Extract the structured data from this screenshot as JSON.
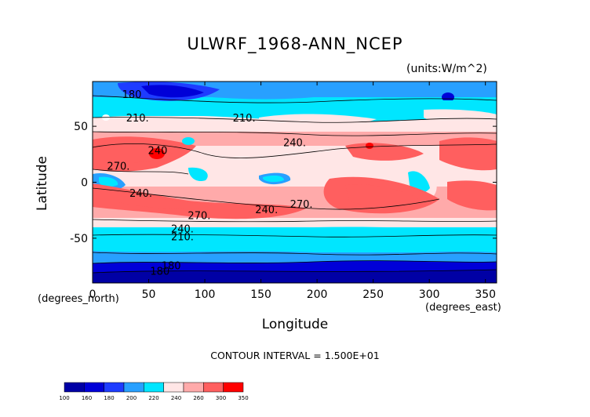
{
  "chart_data": {
    "type": "heatmap",
    "title": "ULWRF_1968-ANN_NCEP",
    "units": "(units:W/m^2)",
    "xlabel": "Longitude",
    "ylabel": "Latitude",
    "x_units": "(degrees_east)",
    "y_units": "(degrees_north)",
    "xlim": [
      0,
      360
    ],
    "ylim": [
      -90,
      90
    ],
    "x_ticks": [
      0,
      50,
      100,
      150,
      200,
      250,
      300,
      350
    ],
    "y_ticks": [
      -50,
      0,
      50
    ],
    "contour_interval": "CONTOUR INTERVAL = 1.500E+01",
    "colorbar": {
      "levels": [
        "100",
        "160",
        "180",
        "200",
        "220",
        "240",
        "260",
        "300",
        "350"
      ],
      "colors": [
        "#0000a5",
        "#0000d8",
        "#1e3cff",
        "#28a0ff",
        "#00e6ff",
        "#ffe6e6",
        "#ffaaaa",
        "#ff5f5f",
        "#ff0000"
      ]
    },
    "contour_labels": [
      {
        "text": "180",
        "lon": 35,
        "lat": 78
      },
      {
        "text": "210.",
        "lon": 40,
        "lat": 57
      },
      {
        "text": "210.",
        "lon": 135,
        "lat": 57
      },
      {
        "text": "240.",
        "lon": 180,
        "lat": 35
      },
      {
        "text": "270.",
        "lon": 23,
        "lat": 14
      },
      {
        "text": "240",
        "lon": 58,
        "lat": 28
      },
      {
        "text": "240.",
        "lon": 43,
        "lat": -10
      },
      {
        "text": "270.",
        "lon": 95,
        "lat": -30
      },
      {
        "text": "240.",
        "lon": 155,
        "lat": -25
      },
      {
        "text": "270.",
        "lon": 186,
        "lat": -20
      },
      {
        "text": "240.",
        "lon": 80,
        "lat": -42
      },
      {
        "text": "210.",
        "lon": 80,
        "lat": -49
      },
      {
        "text": "180",
        "lon": 70,
        "lat": -75
      },
      {
        "text": "180",
        "lon": 60,
        "lat": -80
      }
    ]
  }
}
